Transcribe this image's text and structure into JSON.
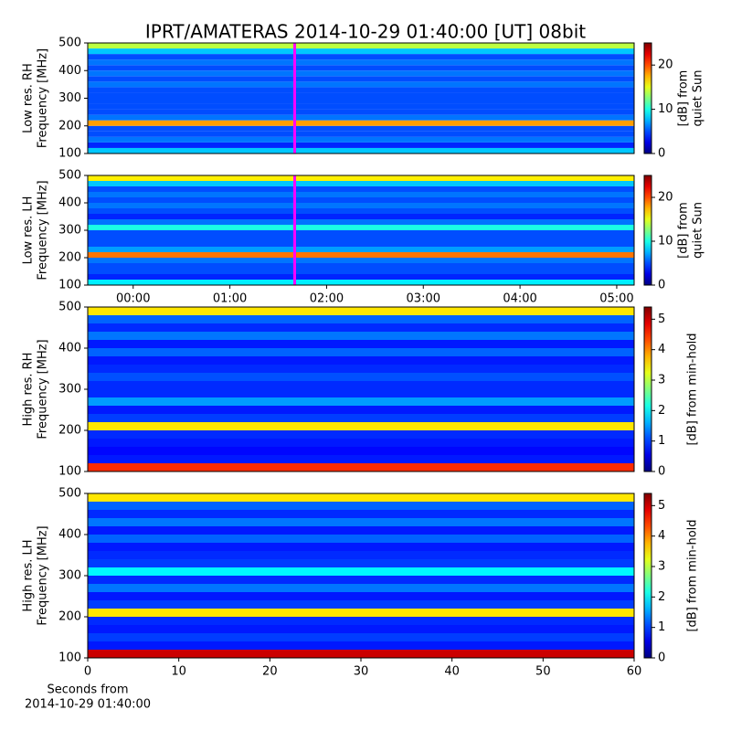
{
  "chart_data": [
    {
      "type": "heatmap",
      "title": "IPRT/AMATERAS 2014-10-29 01:40:00 [UT]   08bit",
      "ylabel": [
        "Low res. RH",
        "Frequency [MHz]"
      ],
      "ylim": [
        100,
        500
      ],
      "yticks": [
        100,
        200,
        300,
        400,
        500
      ],
      "xlim": [
        -0.47,
        5.18
      ],
      "freqs": [
        110,
        130,
        150,
        170,
        190,
        210,
        230,
        250,
        270,
        290,
        310,
        330,
        350,
        370,
        390,
        410,
        430,
        450,
        470,
        490
      ],
      "values": [
        8,
        4,
        6,
        5,
        5,
        18,
        6,
        5,
        5,
        5,
        5,
        5,
        6,
        5,
        6,
        5,
        6,
        5,
        8,
        14
      ],
      "marker": {
        "x": 1.67,
        "color": "#ff00ff"
      },
      "clim": [
        0,
        25
      ],
      "cticks": [
        0,
        10,
        20
      ],
      "clabel": [
        "[dB] from",
        "quiet Sun"
      ]
    },
    {
      "type": "heatmap",
      "ylabel": [
        "Low res. LH",
        "Frequency [MHz]"
      ],
      "ylim": [
        100,
        500
      ],
      "yticks": [
        100,
        200,
        300,
        400,
        500
      ],
      "xlim": [
        -0.47,
        5.18
      ],
      "xticks": [
        {
          "value": 0,
          "label": "00:00"
        },
        {
          "value": 1,
          "label": "01:00"
        },
        {
          "value": 2,
          "label": "02:00"
        },
        {
          "value": 3,
          "label": "03:00"
        },
        {
          "value": 4,
          "label": "04:00"
        },
        {
          "value": 5,
          "label": "05:00"
        }
      ],
      "freqs": [
        110,
        130,
        150,
        170,
        190,
        210,
        230,
        250,
        270,
        290,
        310,
        330,
        350,
        370,
        390,
        410,
        430,
        450,
        470,
        490
      ],
      "values": [
        9,
        4,
        5,
        5,
        6,
        19,
        7,
        5,
        5,
        5,
        10,
        6,
        4,
        5,
        6,
        5,
        6,
        5,
        8,
        16
      ],
      "marker": {
        "x": 1.67,
        "color": "#ff00ff"
      },
      "clim": [
        0,
        25
      ],
      "cticks": [
        0,
        10,
        20
      ],
      "clabel": [
        "[dB] from",
        "quiet Sun"
      ]
    },
    {
      "type": "heatmap",
      "ylabel": [
        "High res. RH",
        "Frequency [MHz]"
      ],
      "ylim": [
        100,
        500
      ],
      "yticks": [
        100,
        200,
        300,
        400,
        500
      ],
      "xlim": [
        0,
        60
      ],
      "freqs": [
        110,
        130,
        150,
        170,
        190,
        210,
        230,
        250,
        270,
        290,
        310,
        330,
        350,
        370,
        390,
        410,
        430,
        450,
        470,
        490
      ],
      "values": [
        4.5,
        0.8,
        0.7,
        0.8,
        0.9,
        3.5,
        1.0,
        0.8,
        1.5,
        0.9,
        0.9,
        1.1,
        0.9,
        0.8,
        1.2,
        0.8,
        1.3,
        0.9,
        1.2,
        3.5
      ],
      "clim": [
        0,
        5.4
      ],
      "cticks": [
        0,
        1,
        2,
        3,
        4,
        5
      ],
      "clabel": [
        "[dB] from min-hold"
      ]
    },
    {
      "type": "heatmap",
      "ylabel": [
        "High res. LH",
        "Frequency [MHz]"
      ],
      "ylim": [
        100,
        500
      ],
      "yticks": [
        100,
        200,
        300,
        400,
        500
      ],
      "xlim": [
        0,
        60
      ],
      "xticks": [
        0,
        10,
        20,
        30,
        40,
        50,
        60
      ],
      "xlabel": [
        "Seconds from",
        "2014-10-29 01:40:00"
      ],
      "freqs": [
        110,
        130,
        150,
        170,
        190,
        210,
        230,
        250,
        270,
        290,
        310,
        330,
        350,
        370,
        390,
        410,
        430,
        450,
        470,
        490
      ],
      "values": [
        5,
        0.8,
        1.0,
        0.8,
        0.9,
        3.5,
        1.0,
        0.8,
        1.3,
        0.9,
        2.0,
        1.0,
        0.9,
        0.8,
        1.2,
        0.8,
        1.3,
        0.9,
        1.2,
        3.5
      ],
      "clim": [
        0,
        5.4
      ],
      "cticks": [
        0,
        1,
        2,
        3,
        4,
        5
      ],
      "clabel": [
        "[dB] from min-hold"
      ]
    }
  ]
}
